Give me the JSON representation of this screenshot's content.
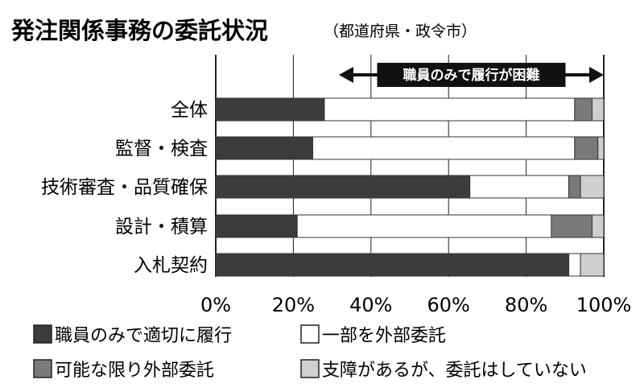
{
  "title": "発注関係事務の委託状況",
  "subtitle": "（都道府県・政令市）",
  "annotation": "職員のみで履行が困難",
  "chart_data": {
    "type": "bar",
    "orientation": "horizontal",
    "stacked": true,
    "categories": [
      "全体",
      "監督・検査",
      "技術審査・品質確保",
      "設計・積算",
      "入札契約"
    ],
    "series": [
      {
        "name": "職員のみで適切に履行",
        "color": "#3c3c3c",
        "values": [
          28,
          25,
          65.5,
          21,
          91
        ]
      },
      {
        "name": "一部を外部委託",
        "color": "#ffffff",
        "values": [
          64.5,
          67.5,
          25.5,
          65.5,
          3
        ]
      },
      {
        "name": "可能な限り外部委託",
        "color": "#7a7a7a",
        "values": [
          4.5,
          6,
          3,
          10.5,
          0
        ]
      },
      {
        "name": "支障があるが、委託はしていない",
        "color": "#cfcfcf",
        "values": [
          3,
          1.5,
          6,
          3,
          6
        ]
      }
    ],
    "xlim": [
      0,
      100
    ],
    "x_ticks": [
      "0%",
      "20%",
      "40%",
      "60%",
      "80%",
      "100%"
    ],
    "annotation_range": [
      28,
      100
    ],
    "grid": true,
    "legend_position": "bottom"
  }
}
